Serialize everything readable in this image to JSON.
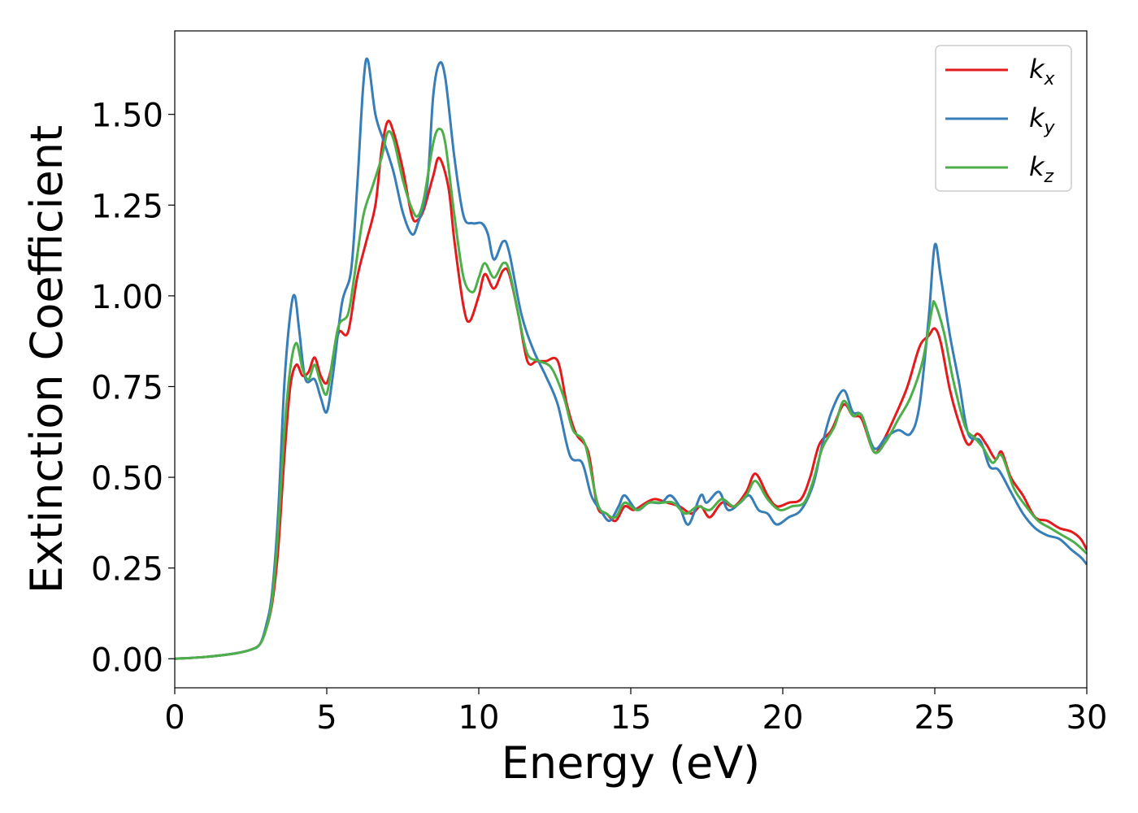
{
  "chart_data": {
    "type": "line",
    "title": "",
    "xlabel": "Energy (eV)",
    "ylabel": "Extinction Coefficient",
    "xlim": [
      0,
      30
    ],
    "ylim": [
      -0.08,
      1.73
    ],
    "xticks": [
      0,
      5,
      10,
      15,
      20,
      25,
      30
    ],
    "xtick_labels": [
      "0",
      "5",
      "10",
      "15",
      "20",
      "25",
      "30"
    ],
    "yticks": [
      0.0,
      0.25,
      0.5,
      0.75,
      1.0,
      1.25,
      1.5
    ],
    "ytick_labels": [
      "0.00",
      "0.25",
      "0.50",
      "0.75",
      "1.00",
      "1.25",
      "1.50"
    ],
    "grid": false,
    "legend_position": "top-right",
    "series": [
      {
        "name": "k",
        "subscript": "x",
        "color": "#e41a1c",
        "points": [
          [
            0,
            0.0
          ],
          [
            1,
            0.005
          ],
          [
            2,
            0.015
          ],
          [
            2.5,
            0.025
          ],
          [
            2.8,
            0.04
          ],
          [
            3.0,
            0.08
          ],
          [
            3.2,
            0.15
          ],
          [
            3.4,
            0.3
          ],
          [
            3.6,
            0.55
          ],
          [
            3.8,
            0.75
          ],
          [
            4.0,
            0.81
          ],
          [
            4.2,
            0.78
          ],
          [
            4.4,
            0.79
          ],
          [
            4.6,
            0.83
          ],
          [
            4.8,
            0.78
          ],
          [
            5.0,
            0.76
          ],
          [
            5.2,
            0.82
          ],
          [
            5.4,
            0.9
          ],
          [
            5.7,
            0.9
          ],
          [
            6.0,
            1.05
          ],
          [
            6.3,
            1.15
          ],
          [
            6.6,
            1.25
          ],
          [
            6.8,
            1.4
          ],
          [
            7.0,
            1.48
          ],
          [
            7.2,
            1.45
          ],
          [
            7.5,
            1.35
          ],
          [
            7.8,
            1.22
          ],
          [
            8.0,
            1.21
          ],
          [
            8.2,
            1.24
          ],
          [
            8.5,
            1.33
          ],
          [
            8.7,
            1.38
          ],
          [
            9.0,
            1.3
          ],
          [
            9.2,
            1.15
          ],
          [
            9.5,
            0.97
          ],
          [
            9.7,
            0.93
          ],
          [
            10.0,
            1.0
          ],
          [
            10.2,
            1.06
          ],
          [
            10.5,
            1.02
          ],
          [
            10.8,
            1.07
          ],
          [
            11.0,
            1.06
          ],
          [
            11.3,
            0.95
          ],
          [
            11.6,
            0.82
          ],
          [
            11.9,
            0.82
          ],
          [
            12.2,
            0.82
          ],
          [
            12.6,
            0.82
          ],
          [
            12.9,
            0.7
          ],
          [
            13.2,
            0.62
          ],
          [
            13.6,
            0.57
          ],
          [
            13.9,
            0.42
          ],
          [
            14.2,
            0.4
          ],
          [
            14.5,
            0.38
          ],
          [
            14.8,
            0.42
          ],
          [
            15.1,
            0.41
          ],
          [
            15.5,
            0.43
          ],
          [
            15.8,
            0.44
          ],
          [
            16.2,
            0.43
          ],
          [
            16.6,
            0.42
          ],
          [
            17.0,
            0.4
          ],
          [
            17.3,
            0.42
          ],
          [
            17.6,
            0.39
          ],
          [
            18.0,
            0.43
          ],
          [
            18.4,
            0.42
          ],
          [
            18.8,
            0.46
          ],
          [
            19.1,
            0.51
          ],
          [
            19.5,
            0.45
          ],
          [
            19.8,
            0.42
          ],
          [
            20.2,
            0.43
          ],
          [
            20.6,
            0.44
          ],
          [
            20.9,
            0.5
          ],
          [
            21.2,
            0.59
          ],
          [
            21.6,
            0.63
          ],
          [
            22.0,
            0.7
          ],
          [
            22.3,
            0.67
          ],
          [
            22.6,
            0.66
          ],
          [
            23.0,
            0.57
          ],
          [
            23.3,
            0.6
          ],
          [
            23.7,
            0.67
          ],
          [
            24.1,
            0.75
          ],
          [
            24.5,
            0.86
          ],
          [
            24.8,
            0.89
          ],
          [
            25.0,
            0.91
          ],
          [
            25.2,
            0.87
          ],
          [
            25.5,
            0.74
          ],
          [
            25.8,
            0.65
          ],
          [
            26.1,
            0.59
          ],
          [
            26.4,
            0.62
          ],
          [
            26.7,
            0.59
          ],
          [
            27.0,
            0.55
          ],
          [
            27.2,
            0.57
          ],
          [
            27.5,
            0.5
          ],
          [
            27.9,
            0.45
          ],
          [
            28.3,
            0.39
          ],
          [
            28.7,
            0.38
          ],
          [
            29.1,
            0.36
          ],
          [
            29.5,
            0.35
          ],
          [
            29.8,
            0.33
          ],
          [
            30.0,
            0.3
          ]
        ]
      },
      {
        "name": "k",
        "subscript": "y",
        "color": "#377eb8",
        "points": [
          [
            0,
            0.0
          ],
          [
            1,
            0.005
          ],
          [
            2,
            0.015
          ],
          [
            2.5,
            0.025
          ],
          [
            2.8,
            0.04
          ],
          [
            3.0,
            0.09
          ],
          [
            3.2,
            0.18
          ],
          [
            3.4,
            0.4
          ],
          [
            3.6,
            0.75
          ],
          [
            3.8,
            0.95
          ],
          [
            3.95,
            1.0
          ],
          [
            4.1,
            0.9
          ],
          [
            4.3,
            0.77
          ],
          [
            4.6,
            0.77
          ],
          [
            4.8,
            0.72
          ],
          [
            5.0,
            0.68
          ],
          [
            5.2,
            0.78
          ],
          [
            5.5,
            0.98
          ],
          [
            5.8,
            1.07
          ],
          [
            6.0,
            1.3
          ],
          [
            6.2,
            1.58
          ],
          [
            6.35,
            1.65
          ],
          [
            6.6,
            1.5
          ],
          [
            6.9,
            1.42
          ],
          [
            7.2,
            1.34
          ],
          [
            7.5,
            1.23
          ],
          [
            7.8,
            1.17
          ],
          [
            8.0,
            1.2
          ],
          [
            8.3,
            1.3
          ],
          [
            8.5,
            1.55
          ],
          [
            8.7,
            1.64
          ],
          [
            8.9,
            1.6
          ],
          [
            9.2,
            1.38
          ],
          [
            9.5,
            1.22
          ],
          [
            9.8,
            1.2
          ],
          [
            10.1,
            1.2
          ],
          [
            10.3,
            1.17
          ],
          [
            10.5,
            1.1
          ],
          [
            10.8,
            1.15
          ],
          [
            11.0,
            1.12
          ],
          [
            11.4,
            0.95
          ],
          [
            11.8,
            0.85
          ],
          [
            12.2,
            0.78
          ],
          [
            12.6,
            0.7
          ],
          [
            13.0,
            0.56
          ],
          [
            13.4,
            0.54
          ],
          [
            13.7,
            0.45
          ],
          [
            14.0,
            0.41
          ],
          [
            14.3,
            0.38
          ],
          [
            14.6,
            0.42
          ],
          [
            14.8,
            0.45
          ],
          [
            15.2,
            0.41
          ],
          [
            15.6,
            0.43
          ],
          [
            16.0,
            0.43
          ],
          [
            16.3,
            0.45
          ],
          [
            16.6,
            0.42
          ],
          [
            16.9,
            0.37
          ],
          [
            17.3,
            0.45
          ],
          [
            17.5,
            0.43
          ],
          [
            17.9,
            0.46
          ],
          [
            18.2,
            0.41
          ],
          [
            18.6,
            0.43
          ],
          [
            18.9,
            0.45
          ],
          [
            19.2,
            0.41
          ],
          [
            19.5,
            0.4
          ],
          [
            19.8,
            0.37
          ],
          [
            20.2,
            0.39
          ],
          [
            20.6,
            0.41
          ],
          [
            21.0,
            0.48
          ],
          [
            21.3,
            0.59
          ],
          [
            21.6,
            0.68
          ],
          [
            22.0,
            0.74
          ],
          [
            22.3,
            0.68
          ],
          [
            22.6,
            0.67
          ],
          [
            23.0,
            0.58
          ],
          [
            23.4,
            0.61
          ],
          [
            23.8,
            0.63
          ],
          [
            24.2,
            0.62
          ],
          [
            24.5,
            0.7
          ],
          [
            24.8,
            0.94
          ],
          [
            25.0,
            1.14
          ],
          [
            25.2,
            1.05
          ],
          [
            25.5,
            0.89
          ],
          [
            25.8,
            0.76
          ],
          [
            26.1,
            0.62
          ],
          [
            26.5,
            0.6
          ],
          [
            26.8,
            0.53
          ],
          [
            27.1,
            0.52
          ],
          [
            27.5,
            0.46
          ],
          [
            27.9,
            0.4
          ],
          [
            28.3,
            0.36
          ],
          [
            28.7,
            0.34
          ],
          [
            29.1,
            0.33
          ],
          [
            29.5,
            0.3
          ],
          [
            29.8,
            0.28
          ],
          [
            30.0,
            0.26
          ]
        ]
      },
      {
        "name": "k",
        "subscript": "z",
        "color": "#4daf4a",
        "points": [
          [
            0,
            0.0
          ],
          [
            1,
            0.005
          ],
          [
            2,
            0.015
          ],
          [
            2.5,
            0.025
          ],
          [
            2.8,
            0.04
          ],
          [
            3.0,
            0.08
          ],
          [
            3.2,
            0.16
          ],
          [
            3.4,
            0.35
          ],
          [
            3.6,
            0.62
          ],
          [
            3.8,
            0.8
          ],
          [
            4.0,
            0.87
          ],
          [
            4.2,
            0.8
          ],
          [
            4.4,
            0.77
          ],
          [
            4.6,
            0.81
          ],
          [
            4.8,
            0.76
          ],
          [
            5.0,
            0.73
          ],
          [
            5.2,
            0.83
          ],
          [
            5.4,
            0.92
          ],
          [
            5.7,
            0.95
          ],
          [
            5.9,
            1.05
          ],
          [
            6.2,
            1.22
          ],
          [
            6.5,
            1.3
          ],
          [
            6.8,
            1.38
          ],
          [
            7.0,
            1.45
          ],
          [
            7.2,
            1.43
          ],
          [
            7.5,
            1.32
          ],
          [
            7.8,
            1.24
          ],
          [
            8.0,
            1.22
          ],
          [
            8.2,
            1.27
          ],
          [
            8.5,
            1.42
          ],
          [
            8.7,
            1.46
          ],
          [
            8.9,
            1.42
          ],
          [
            9.2,
            1.22
          ],
          [
            9.5,
            1.05
          ],
          [
            9.8,
            1.01
          ],
          [
            10.0,
            1.05
          ],
          [
            10.2,
            1.09
          ],
          [
            10.5,
            1.05
          ],
          [
            10.8,
            1.09
          ],
          [
            11.0,
            1.07
          ],
          [
            11.3,
            0.95
          ],
          [
            11.6,
            0.84
          ],
          [
            12.0,
            0.82
          ],
          [
            12.4,
            0.8
          ],
          [
            12.8,
            0.72
          ],
          [
            13.1,
            0.63
          ],
          [
            13.5,
            0.59
          ],
          [
            13.9,
            0.43
          ],
          [
            14.2,
            0.4
          ],
          [
            14.5,
            0.39
          ],
          [
            14.8,
            0.43
          ],
          [
            15.2,
            0.41
          ],
          [
            15.6,
            0.43
          ],
          [
            16.0,
            0.43
          ],
          [
            16.4,
            0.43
          ],
          [
            16.8,
            0.4
          ],
          [
            17.2,
            0.42
          ],
          [
            17.6,
            0.41
          ],
          [
            18.0,
            0.44
          ],
          [
            18.4,
            0.42
          ],
          [
            18.8,
            0.45
          ],
          [
            19.1,
            0.49
          ],
          [
            19.5,
            0.44
          ],
          [
            19.9,
            0.41
          ],
          [
            20.3,
            0.42
          ],
          [
            20.7,
            0.43
          ],
          [
            21.0,
            0.49
          ],
          [
            21.3,
            0.58
          ],
          [
            21.7,
            0.64
          ],
          [
            22.0,
            0.71
          ],
          [
            22.3,
            0.67
          ],
          [
            22.6,
            0.67
          ],
          [
            23.0,
            0.57
          ],
          [
            23.4,
            0.6
          ],
          [
            23.8,
            0.66
          ],
          [
            24.2,
            0.72
          ],
          [
            24.6,
            0.82
          ],
          [
            24.9,
            0.96
          ],
          [
            25.0,
            0.98
          ],
          [
            25.3,
            0.9
          ],
          [
            25.6,
            0.77
          ],
          [
            26.0,
            0.64
          ],
          [
            26.3,
            0.61
          ],
          [
            26.6,
            0.58
          ],
          [
            26.9,
            0.54
          ],
          [
            27.2,
            0.56
          ],
          [
            27.6,
            0.47
          ],
          [
            28.0,
            0.42
          ],
          [
            28.4,
            0.38
          ],
          [
            28.8,
            0.36
          ],
          [
            29.2,
            0.34
          ],
          [
            29.6,
            0.32
          ],
          [
            30.0,
            0.29
          ]
        ]
      }
    ]
  }
}
